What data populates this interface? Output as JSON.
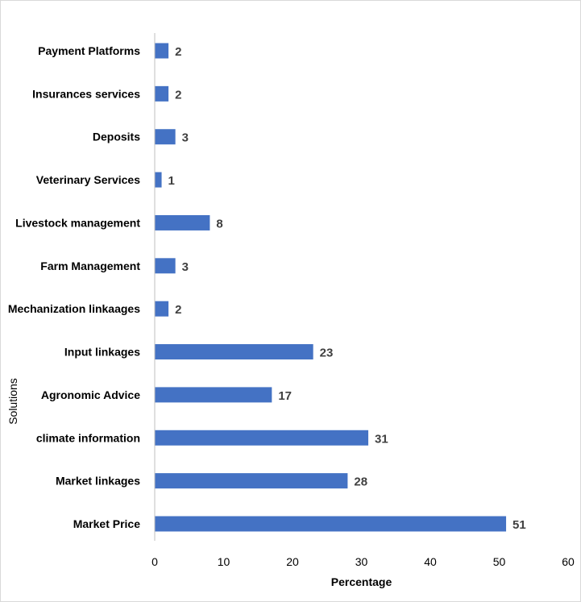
{
  "chart_data": {
    "type": "bar",
    "orientation": "horizontal",
    "title": "",
    "xlabel": "Percentage",
    "ylabel": "Solutions",
    "xlim": [
      0,
      60
    ],
    "x_ticks": [
      0,
      10,
      20,
      30,
      40,
      50,
      60
    ],
    "grid": false,
    "bar_color": "#4472C4",
    "categories": [
      "Payment Platforms",
      "Insurances services",
      "Deposits",
      "Veterinary Services",
      "Livestock management",
      "Farm Management",
      "Mechanization linkaages",
      "Input linkages",
      "Agronomic Advice",
      "climate information",
      "Market linkages",
      "Market Price"
    ],
    "values": [
      2,
      2,
      3,
      1,
      8,
      3,
      2,
      23,
      17,
      31,
      28,
      51
    ],
    "data_labels": true
  }
}
